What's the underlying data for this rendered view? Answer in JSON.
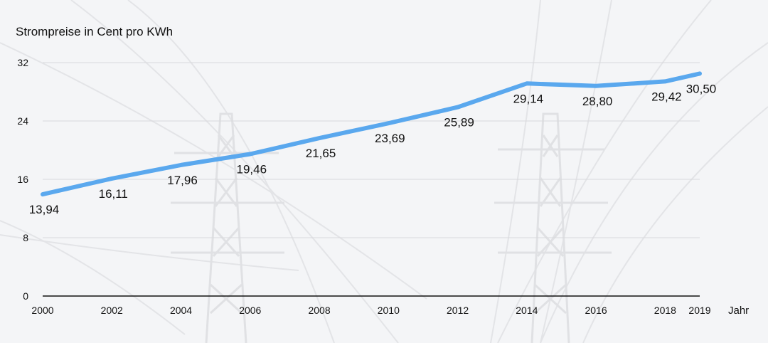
{
  "chart_data": {
    "type": "line",
    "title": "",
    "ylabel": "Strompreise in Cent pro KWh",
    "xlabel": "Jahr",
    "ylim": [
      0,
      32
    ],
    "yticks": [
      0,
      8,
      16,
      24,
      32
    ],
    "xlim": [
      2000,
      2019
    ],
    "xticks": [
      2000,
      2002,
      2004,
      2006,
      2008,
      2010,
      2012,
      2014,
      2016,
      2018,
      2019
    ],
    "grid": true,
    "series": [
      {
        "color": "#5aa8ee",
        "points": [
          {
            "x": 2000,
            "y": 13.94,
            "label": "13,94"
          },
          {
            "x": 2002,
            "y": 16.11,
            "label": "16,11"
          },
          {
            "x": 2004,
            "y": 17.96,
            "label": "17,96"
          },
          {
            "x": 2006,
            "y": 19.46,
            "label": "19,46"
          },
          {
            "x": 2008,
            "y": 21.65,
            "label": "21,65"
          },
          {
            "x": 2010,
            "y": 23.69,
            "label": "23,69"
          },
          {
            "x": 2012,
            "y": 25.89,
            "label": "25,89"
          },
          {
            "x": 2014,
            "y": 29.14,
            "label": "29,14"
          },
          {
            "x": 2016,
            "y": 28.8,
            "label": "28,80"
          },
          {
            "x": 2018,
            "y": 29.42,
            "label": "29,42"
          },
          {
            "x": 2019,
            "y": 30.5,
            "label": "30,50"
          }
        ]
      }
    ]
  },
  "colors": {
    "line": "#5aa8ee",
    "grid": "#d8d9dc",
    "axis": "#111111",
    "background": "#f4f5f7"
  }
}
